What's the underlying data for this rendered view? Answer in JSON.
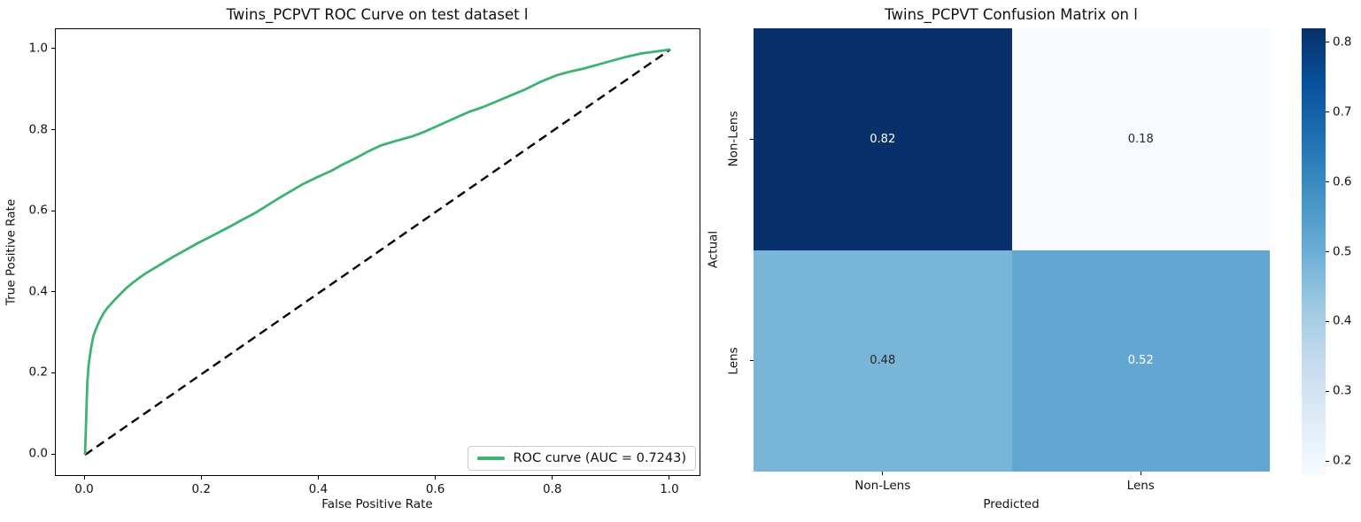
{
  "figure": {
    "background": "#ffffff"
  },
  "roc_plot": {
    "title": "Twins_PCPVT ROC Curve on test dataset l",
    "xlabel": "False Positive Rate",
    "ylabel": "True Positive Rate",
    "xticks": [
      "0.0",
      "0.2",
      "0.4",
      "0.6",
      "0.8",
      "1.0"
    ],
    "yticks": [
      "0.0",
      "0.2",
      "0.4",
      "0.6",
      "0.8",
      "1.0"
    ],
    "legend": {
      "label": "ROC curve (AUC = 0.7243)"
    },
    "auc": "0.7243",
    "colors": {
      "curve": "#3cb371",
      "diagonal": "#000000"
    }
  },
  "confusion_plot": {
    "title": "Twins_PCPVT Confusion Matrix on l",
    "xlabel": "Predicted",
    "ylabel": "Actual",
    "xticklabels": [
      "Non-Lens",
      "Lens"
    ],
    "yticklabels": [
      "Non-Lens",
      "Lens"
    ],
    "values": [
      [
        0.82,
        0.18
      ],
      [
        0.48,
        0.52
      ]
    ],
    "cell_colors": [
      [
        "#08306b",
        "#f7fbff"
      ],
      [
        "#78b5d9",
        "#61a7d2"
      ]
    ],
    "text_colors": [
      [
        "#ffffff",
        "#262626"
      ],
      [
        "#262626",
        "#ffffff"
      ]
    ],
    "colorbar": {
      "ticks": [
        "0.8",
        "0.7",
        "0.6",
        "0.5",
        "0.4",
        "0.3",
        "0.2"
      ],
      "vmin": 0.18,
      "vmax": 0.82,
      "gradient_stops": [
        "#f7fbff",
        "#deebf7",
        "#c6dbef",
        "#9ecae1",
        "#6baed6",
        "#4292c6",
        "#2171b5",
        "#08519c",
        "#08306b"
      ]
    }
  },
  "chart_data": [
    {
      "type": "line",
      "title": "Twins_PCPVT ROC Curve on test dataset l",
      "xlabel": "False Positive Rate",
      "ylabel": "True Positive Rate",
      "xlim": [
        -0.05,
        1.05
      ],
      "ylim": [
        -0.05,
        1.05
      ],
      "xticks": [
        0.0,
        0.2,
        0.4,
        0.6,
        0.8,
        1.0
      ],
      "yticks": [
        0.0,
        0.2,
        0.4,
        0.6,
        0.8,
        1.0
      ],
      "grid": false,
      "legend_position": "lower right",
      "series": [
        {
          "name": "ROC curve (AUC = 0.7243)",
          "color": "#3cb371",
          "style": "solid",
          "auc": 0.7243,
          "points": [
            [
              0.0,
              0.0
            ],
            [
              0.001,
              0.045
            ],
            [
              0.002,
              0.095
            ],
            [
              0.003,
              0.14
            ],
            [
              0.004,
              0.18
            ],
            [
              0.006,
              0.22
            ],
            [
              0.01,
              0.262
            ],
            [
              0.014,
              0.292
            ],
            [
              0.018,
              0.308
            ],
            [
              0.025,
              0.332
            ],
            [
              0.032,
              0.35
            ],
            [
              0.038,
              0.362
            ],
            [
              0.046,
              0.375
            ],
            [
              0.053,
              0.386
            ],
            [
              0.062,
              0.399
            ],
            [
              0.071,
              0.412
            ],
            [
              0.082,
              0.425
            ],
            [
              0.094,
              0.438
            ],
            [
              0.105,
              0.449
            ],
            [
              0.118,
              0.46
            ],
            [
              0.135,
              0.475
            ],
            [
              0.15,
              0.488
            ],
            [
              0.165,
              0.5
            ],
            [
              0.18,
              0.512
            ],
            [
              0.195,
              0.524
            ],
            [
              0.21,
              0.535
            ],
            [
              0.23,
              0.55
            ],
            [
              0.25,
              0.565
            ],
            [
              0.27,
              0.581
            ],
            [
              0.29,
              0.596
            ],
            [
              0.31,
              0.614
            ],
            [
              0.33,
              0.632
            ],
            [
              0.35,
              0.649
            ],
            [
              0.37,
              0.666
            ],
            [
              0.395,
              0.684
            ],
            [
              0.42,
              0.7
            ],
            [
              0.44,
              0.716
            ],
            [
              0.46,
              0.73
            ],
            [
              0.482,
              0.747
            ],
            [
              0.505,
              0.763
            ],
            [
              0.53,
              0.774
            ],
            [
              0.558,
              0.785
            ],
            [
              0.58,
              0.797
            ],
            [
              0.6,
              0.81
            ],
            [
              0.628,
              0.828
            ],
            [
              0.656,
              0.846
            ],
            [
              0.68,
              0.858
            ],
            [
              0.7,
              0.87
            ],
            [
              0.725,
              0.885
            ],
            [
              0.75,
              0.9
            ],
            [
              0.778,
              0.92
            ],
            [
              0.807,
              0.937
            ],
            [
              0.83,
              0.946
            ],
            [
              0.85,
              0.952
            ],
            [
              0.875,
              0.962
            ],
            [
              0.9,
              0.972
            ],
            [
              0.925,
              0.982
            ],
            [
              0.95,
              0.99
            ],
            [
              0.975,
              0.995
            ],
            [
              1.0,
              1.0
            ]
          ]
        },
        {
          "name": "chance-diagonal",
          "color": "#000000",
          "style": "dashed",
          "points": [
            [
              0.0,
              0.0
            ],
            [
              1.0,
              1.0
            ]
          ]
        }
      ]
    },
    {
      "type": "heatmap",
      "title": "Twins_PCPVT Confusion Matrix on l",
      "xlabel": "Predicted",
      "ylabel": "Actual",
      "x_categories": [
        "Non-Lens",
        "Lens"
      ],
      "y_categories": [
        "Non-Lens",
        "Lens"
      ],
      "values": [
        [
          0.82,
          0.18
        ],
        [
          0.48,
          0.52
        ]
      ],
      "colormap": "Blues",
      "colorbar_range": [
        0.18,
        0.82
      ],
      "colorbar_ticks": [
        0.2,
        0.3,
        0.4,
        0.5,
        0.6,
        0.7,
        0.8
      ]
    }
  ]
}
